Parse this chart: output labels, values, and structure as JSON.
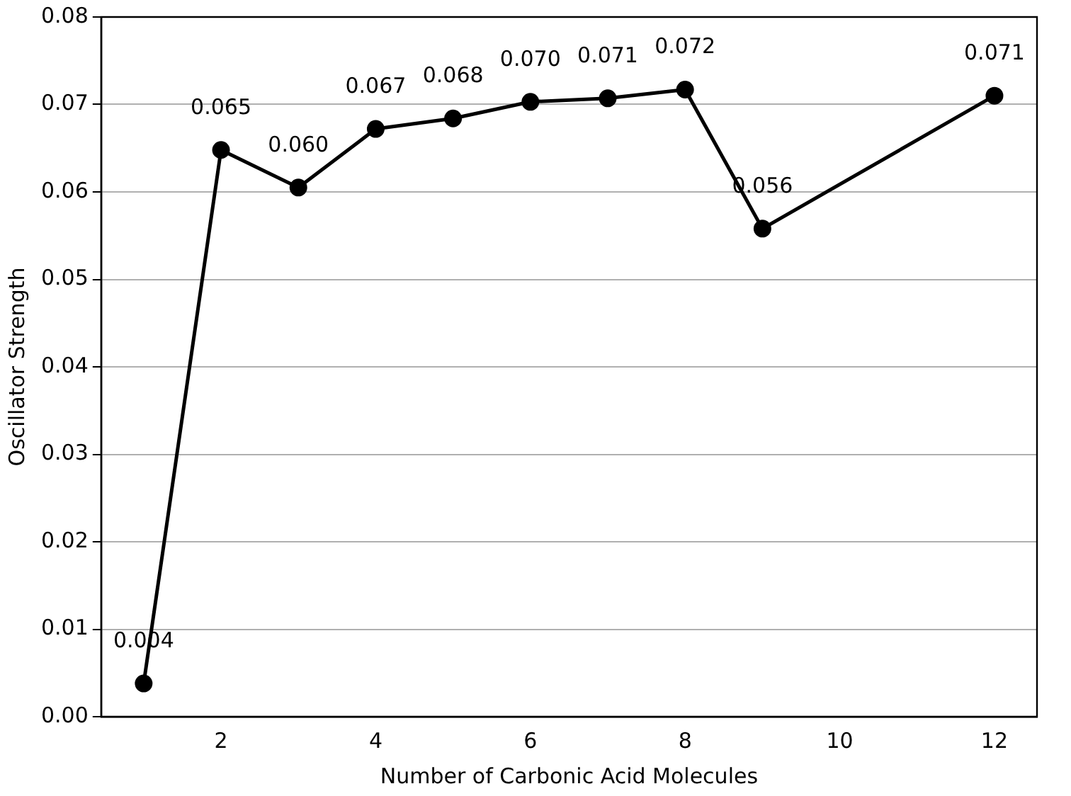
{
  "chart_data": {
    "type": "line",
    "xlabel": "Number of Carbonic Acid Molecules",
    "ylabel": "Oscillator Strength",
    "x": [
      1,
      2,
      3,
      4,
      5,
      6,
      7,
      8,
      9,
      12
    ],
    "series": [
      {
        "color": "#000000",
        "values": [
          0.0038,
          0.0648,
          0.0605,
          0.0672,
          0.0684,
          0.0703,
          0.0707,
          0.0717,
          0.0558,
          0.071
        ],
        "value_labels": [
          "0.004",
          "0.065",
          "0.060",
          "0.067",
          "0.068",
          "0.070",
          "0.071",
          "0.072",
          "0.056",
          "0.071"
        ]
      }
    ],
    "xlim": [
      0.45,
      12.55
    ],
    "xticks": [
      2,
      4,
      6,
      8,
      10,
      12
    ],
    "ylim": [
      0,
      0.08
    ],
    "yticks": [
      {
        "value": 0,
        "label": "0.00"
      },
      {
        "value": 0.01,
        "label": "0.01"
      },
      {
        "value": 0.02,
        "label": "0.02"
      },
      {
        "value": 0.03,
        "label": "0.03"
      },
      {
        "value": 0.04,
        "label": "0.04"
      },
      {
        "value": 0.05,
        "label": "0.05"
      },
      {
        "value": 0.06,
        "label": "0.06"
      },
      {
        "value": 0.07,
        "label": "0.07"
      },
      {
        "value": 0.08,
        "label": "0.08"
      }
    ],
    "grid": "y",
    "marker": "circle",
    "line_style": "solid",
    "legend": false
  }
}
